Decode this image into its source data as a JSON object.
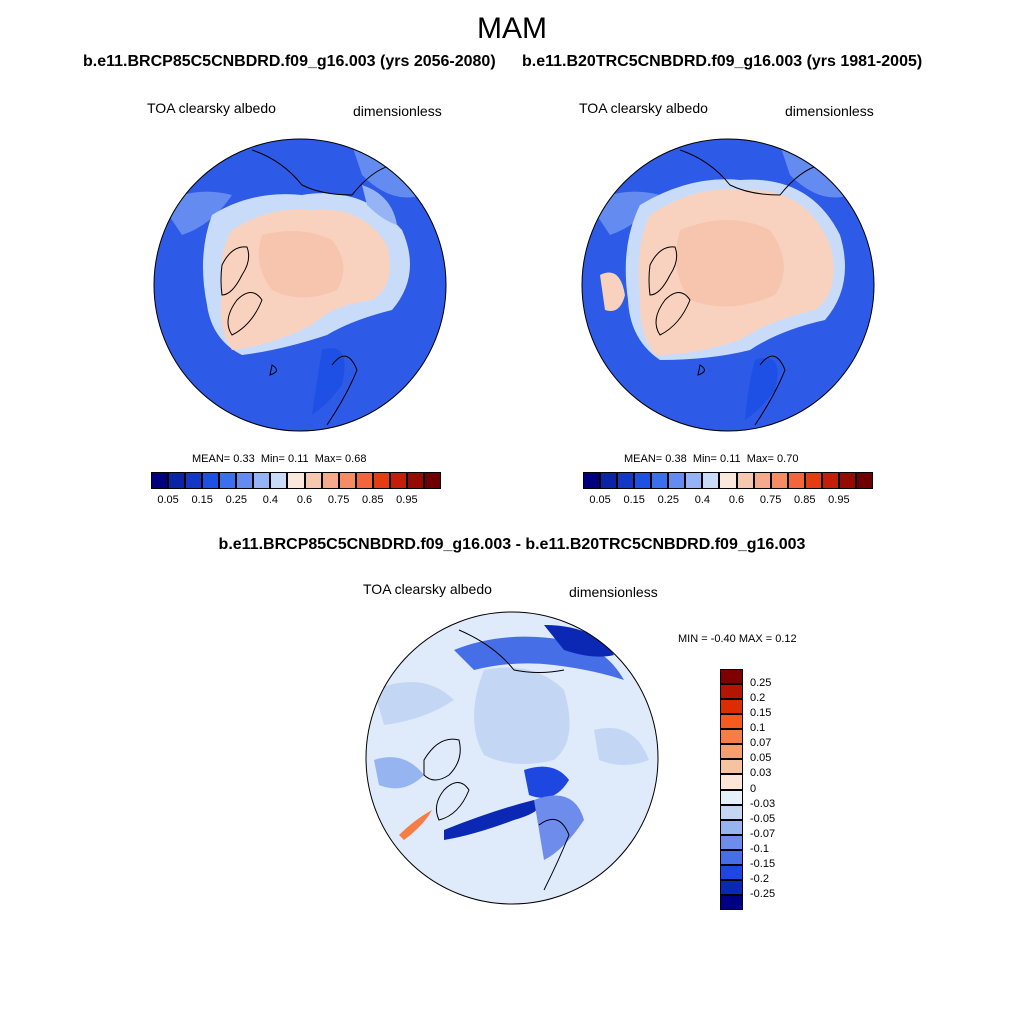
{
  "title": "MAM",
  "panels": [
    {
      "case_label": "b.e11.BRCP85C5CNBDRD.f09_g16.003 (yrs 2056-2080)",
      "variable": "TOA clearsky albedo",
      "units": "dimensionless",
      "stats": {
        "mean_label": "MEAN=",
        "mean": "0.33",
        "min_label": "Min=",
        "min": "0.11",
        "max_label": "Max=",
        "max": "0.68"
      }
    },
    {
      "case_label": "b.e11.B20TRC5CNBDRD.f09_g16.003 (yrs 1981-2005)",
      "variable": "TOA clearsky albedo",
      "units": "dimensionless",
      "stats": {
        "mean_label": "MEAN=",
        "mean": "0.38",
        "min_label": "Min=",
        "min": "0.11",
        "max_label": "Max=",
        "max": "0.70"
      }
    }
  ],
  "diff_panel": {
    "case_label": "b.e11.BRCP85C5CNBDRD.f09_g16.003 - b.e11.B20TRC5CNBDRD.f09_g16.003",
    "variable": "TOA clearsky albedo",
    "units": "dimensionless",
    "stats": {
      "min_label": "MIN =",
      "min": "-0.40",
      "max_label": "MAX =",
      "max": "0.12"
    }
  },
  "colorbar_abs": {
    "ticks": [
      "0.05",
      "0.15",
      "0.25",
      "0.4",
      "0.6",
      "0.75",
      "0.85",
      "0.95"
    ],
    "colors": [
      "#00007f",
      "#0a24a8",
      "#1437c8",
      "#1e50e6",
      "#3c6ef0",
      "#648cf0",
      "#96b4f5",
      "#c8dcfa",
      "#fbe8dc",
      "#f7c8b0",
      "#f5aa8c",
      "#f58c64",
      "#f5643c",
      "#e63c14",
      "#c31e0a",
      "#960a00",
      "#6e0000"
    ]
  },
  "colorbar_diff": {
    "ticks": [
      "0.25",
      "0.2",
      "0.15",
      "0.1",
      "0.07",
      "0.05",
      "0.03",
      "0",
      "-0.03",
      "-0.05",
      "-0.07",
      "-0.1",
      "-0.15",
      "-0.2",
      "-0.25"
    ],
    "colors": [
      "#7f0000",
      "#b41400",
      "#dc2d00",
      "#f55a1e",
      "#f57d46",
      "#f5a06e",
      "#f5c3a0",
      "#fbe6d7",
      "#e6f0fa",
      "#c3d7f5",
      "#96b4f0",
      "#6e8ceb",
      "#466ee6",
      "#1e46e1",
      "#0a28b4",
      "#000082"
    ]
  }
}
